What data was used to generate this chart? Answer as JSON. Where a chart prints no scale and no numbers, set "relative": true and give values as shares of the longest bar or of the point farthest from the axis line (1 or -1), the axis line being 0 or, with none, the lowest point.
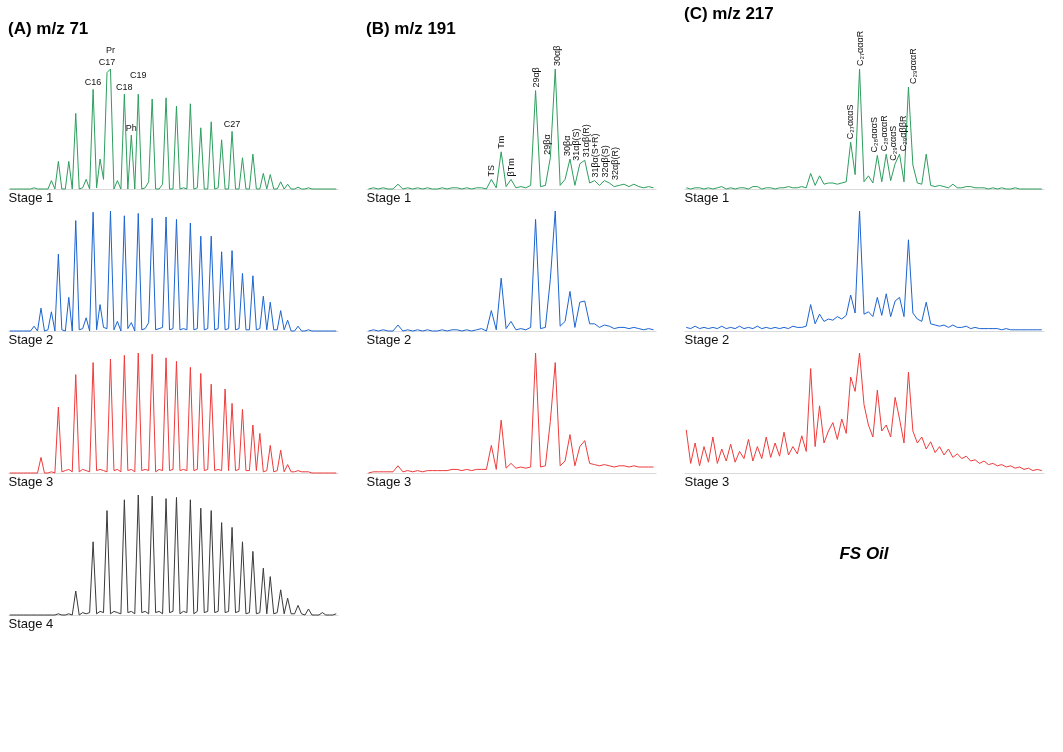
{
  "chart_data": [
    {
      "type": "line",
      "relative": true,
      "title": "(A) m/z 71",
      "xlabel": "Stage 1",
      "tick_labels": false,
      "categories": [
        null,
        null,
        null,
        null,
        null,
        null,
        null,
        null,
        null,
        null,
        null,
        null,
        null,
        null,
        null,
        null,
        null,
        null,
        null,
        null,
        null,
        null,
        null,
        null,
        null,
        null,
        null,
        null,
        null,
        null,
        null,
        null,
        null,
        null,
        null,
        null,
        null,
        null,
        null,
        null,
        null,
        null,
        null,
        null,
        null,
        null,
        null,
        null,
        null,
        null,
        null,
        null,
        null,
        null,
        null,
        null,
        null,
        null,
        null,
        null,
        null,
        null,
        null,
        null,
        null,
        null,
        null,
        null,
        null,
        null,
        null,
        null,
        null,
        null,
        null,
        null,
        null,
        null,
        null,
        null,
        null,
        null,
        null,
        null,
        null,
        null,
        null,
        null,
        null,
        null,
        null,
        null,
        null,
        null,
        null
      ],
      "series": [
        {
          "color": "#2e9e5e",
          "values": [
            0,
            0,
            0,
            0,
            0,
            0,
            0,
            0.01,
            0,
            0,
            0,
            0,
            0.07,
            0,
            0.23,
            0,
            0,
            0.23,
            0,
            0.63,
            0,
            0.01,
            0.08,
            0,
            0.83,
            0.01,
            0.25,
            0.08,
            0.97,
            1.0,
            0,
            0.07,
            0,
            0.79,
            0,
            0.45,
            0,
            0.79,
            0,
            0.01,
            0.06,
            0.75,
            0,
            0,
            0.04,
            0.76,
            0,
            0,
            0.69,
            0,
            0.01,
            0,
            0.71,
            0,
            0.01,
            0.51,
            0,
            0,
            0.56,
            0,
            0.01,
            0.41,
            0,
            0,
            0.48,
            0,
            0,
            0.26,
            0,
            0,
            0.29,
            0,
            0,
            0.13,
            0,
            0.12,
            0,
            0,
            0.06,
            0,
            0.04,
            0,
            0,
            0.015,
            0,
            0,
            0.01,
            0,
            0,
            0,
            0,
            0,
            0,
            0,
            0
          ]
        }
      ],
      "annotations": [
        {
          "text": "C16",
          "y": 0.83
        },
        {
          "text": "C17",
          "y": 0.97
        },
        {
          "text": "Pr",
          "y": 1.0
        },
        {
          "text": "C18",
          "y": 0.79
        },
        {
          "text": "Ph",
          "y": 0.45
        },
        {
          "text": "C19",
          "y": 0.79
        },
        {
          "text": "C27",
          "y": 0.48
        }
      ]
    },
    {
      "type": "line",
      "relative": true,
      "xlabel": "Stage 2",
      "tick_labels": false,
      "categories": [
        null,
        null,
        null,
        null,
        null,
        null,
        null,
        null,
        null,
        null,
        null,
        null,
        null,
        null,
        null,
        null,
        null,
        null,
        null,
        null,
        null,
        null,
        null,
        null,
        null,
        null,
        null,
        null,
        null,
        null,
        null,
        null,
        null,
        null,
        null,
        null,
        null,
        null,
        null,
        null,
        null,
        null,
        null,
        null,
        null,
        null,
        null,
        null,
        null,
        null,
        null,
        null,
        null,
        null,
        null,
        null,
        null,
        null,
        null,
        null,
        null,
        null,
        null,
        null,
        null,
        null,
        null,
        null,
        null,
        null,
        null,
        null,
        null,
        null,
        null,
        null,
        null,
        null,
        null,
        null,
        null,
        null,
        null,
        null,
        null,
        null,
        null,
        null,
        null,
        null,
        null,
        null,
        null,
        null,
        null
      ],
      "series": [
        {
          "color": "#1c64d0",
          "values": [
            0,
            0,
            0,
            0,
            0,
            0,
            0,
            0.04,
            0,
            0.19,
            0,
            0.01,
            0.16,
            0,
            0.64,
            0.01,
            0,
            0.28,
            0,
            0.92,
            0.01,
            0.02,
            0.11,
            0,
            0.99,
            0.01,
            0.22,
            0.03,
            0.02,
            1.0,
            0.01,
            0.08,
            0,
            0.96,
            0.02,
            0.07,
            0,
            0.98,
            0.01,
            0.02,
            0.07,
            0.94,
            0.01,
            0.02,
            0.03,
            0.95,
            0.01,
            0.02,
            0.93,
            0.01,
            0.02,
            0.01,
            0.9,
            0.01,
            0.02,
            0.79,
            0.01,
            0.02,
            0.79,
            0.01,
            0.02,
            0.66,
            0.01,
            0.02,
            0.67,
            0.01,
            0.02,
            0.48,
            0.01,
            0.01,
            0.46,
            0.01,
            0.02,
            0.29,
            0.01,
            0.24,
            0.01,
            0.01,
            0.17,
            0.01,
            0.09,
            0,
            0,
            0.04,
            0,
            0,
            0.01,
            0,
            0,
            0,
            0,
            0,
            0,
            0,
            0
          ]
        }
      ]
    },
    {
      "type": "line",
      "relative": true,
      "xlabel": "Stage 3",
      "tick_labels": false,
      "categories": [
        null,
        null,
        null,
        null,
        null,
        null,
        null,
        null,
        null,
        null,
        null,
        null,
        null,
        null,
        null,
        null,
        null,
        null,
        null,
        null,
        null,
        null,
        null,
        null,
        null,
        null,
        null,
        null,
        null,
        null,
        null,
        null,
        null,
        null,
        null,
        null,
        null,
        null,
        null,
        null,
        null,
        null,
        null,
        null,
        null,
        null,
        null,
        null,
        null,
        null,
        null,
        null,
        null,
        null,
        null,
        null,
        null,
        null,
        null,
        null,
        null,
        null,
        null,
        null,
        null,
        null,
        null,
        null,
        null,
        null,
        null,
        null,
        null,
        null,
        null,
        null,
        null,
        null,
        null,
        null,
        null,
        null,
        null,
        null,
        null,
        null,
        null,
        null,
        null,
        null,
        null,
        null,
        null,
        null,
        null
      ],
      "series": [
        {
          "color": "#ef3b3b",
          "values": [
            0,
            0,
            0,
            0,
            0,
            0,
            0,
            0,
            0,
            0.13,
            0,
            0,
            0.01,
            0,
            0.55,
            0.01,
            0.02,
            0.03,
            0.01,
            0.82,
            0.01,
            0.03,
            0.02,
            0.01,
            0.92,
            0.02,
            0.03,
            0.02,
            0.01,
            0.95,
            0.02,
            0.03,
            0.01,
            0.98,
            0.02,
            0.03,
            0.01,
            1.0,
            0.02,
            0.03,
            0.02,
            0.99,
            0.01,
            0.03,
            0.02,
            0.96,
            0.02,
            0.03,
            0.93,
            0.02,
            0.03,
            0.02,
            0.88,
            0.02,
            0.03,
            0.83,
            0.02,
            0.03,
            0.74,
            0.02,
            0.03,
            0.02,
            0.7,
            0.02,
            0.58,
            0.02,
            0.03,
            0.53,
            0.02,
            0.02,
            0.4,
            0.02,
            0.33,
            0.01,
            0.02,
            0.23,
            0.01,
            0.02,
            0.19,
            0.01,
            0.07,
            0.01,
            0.01,
            0.02,
            0.01,
            0.01,
            0.01,
            0,
            0,
            0,
            0,
            0,
            0,
            0,
            0
          ]
        }
      ]
    },
    {
      "type": "line",
      "relative": true,
      "xlabel": "Stage 4",
      "tick_labels": false,
      "categories": [
        null,
        null,
        null,
        null,
        null,
        null,
        null,
        null,
        null,
        null,
        null,
        null,
        null,
        null,
        null,
        null,
        null,
        null,
        null,
        null,
        null,
        null,
        null,
        null,
        null,
        null,
        null,
        null,
        null,
        null,
        null,
        null,
        null,
        null,
        null,
        null,
        null,
        null,
        null,
        null,
        null,
        null,
        null,
        null,
        null,
        null,
        null,
        null,
        null,
        null,
        null,
        null,
        null,
        null,
        null,
        null,
        null,
        null,
        null,
        null,
        null,
        null,
        null,
        null,
        null,
        null,
        null,
        null,
        null,
        null,
        null,
        null,
        null,
        null,
        null,
        null,
        null,
        null,
        null,
        null,
        null,
        null,
        null,
        null,
        null,
        null,
        null,
        null,
        null,
        null,
        null,
        null,
        null,
        null,
        null
      ],
      "series": [
        {
          "color": "#3a3a3a",
          "values": [
            0,
            0,
            0,
            0,
            0,
            0,
            0,
            0,
            0,
            0,
            0,
            0,
            0,
            0,
            0.01,
            0,
            0,
            0.01,
            0,
            0.2,
            0,
            0.02,
            0.01,
            0.02,
            0.61,
            0.01,
            0.03,
            0.02,
            0.87,
            0.01,
            0.03,
            0.02,
            0.01,
            0.96,
            0.02,
            0.03,
            0.01,
            1.0,
            0.02,
            0.03,
            0.01,
            0.99,
            0.02,
            0.03,
            0.01,
            0.97,
            0.02,
            0.03,
            0.98,
            0.01,
            0.03,
            0.02,
            0.96,
            0.01,
            0.03,
            0.89,
            0.02,
            0.03,
            0.87,
            0.02,
            0.03,
            0.77,
            0.02,
            0.03,
            0.73,
            0.02,
            0.03,
            0.61,
            0.01,
            0.02,
            0.53,
            0.01,
            0.02,
            0.39,
            0.01,
            0.32,
            0.01,
            0.02,
            0.21,
            0.01,
            0.14,
            0.01,
            0.01,
            0.08,
            0.01,
            0,
            0.05,
            0,
            0,
            0,
            0.02,
            0,
            0,
            0,
            0.01
          ]
        }
      ]
    },
    {
      "type": "line",
      "relative": true,
      "title": "(B) m/z 191",
      "xlabel": "Stage 1",
      "tick_labels": false,
      "categories": [
        null,
        null,
        null,
        null,
        null,
        null,
        null,
        null,
        null,
        null,
        null,
        null,
        null,
        null,
        null,
        null,
        null,
        null,
        null,
        null,
        null,
        null,
        null,
        null,
        null,
        null,
        null,
        null,
        null,
        null,
        null,
        null,
        null,
        null,
        null,
        null,
        null,
        null,
        null,
        null,
        null,
        null,
        null,
        null,
        null,
        null,
        null,
        null,
        null,
        null,
        null,
        null,
        null,
        null,
        null,
        null,
        null,
        null,
        null
      ],
      "series": [
        {
          "color": "#2e9e5e",
          "values": [
            0,
            0.01,
            0,
            0.01,
            0,
            0,
            0.04,
            0,
            0.01,
            0,
            0.01,
            0,
            0.01,
            0,
            0,
            0.01,
            0,
            0.01,
            0.01,
            0,
            0.01,
            0,
            0.01,
            0.01,
            0,
            0.08,
            0.01,
            0.31,
            0.02,
            0.08,
            0.01,
            0.02,
            0.01,
            0.03,
            0.82,
            0.02,
            0.03,
            0.26,
            1.0,
            0.03,
            0.08,
            0.25,
            0.03,
            0.21,
            0.24,
            0.05,
            0.07,
            0.03,
            0.07,
            0.05,
            0.02,
            0.03,
            0.04,
            0.02,
            0.04,
            0.02,
            0.01,
            0.02,
            0.01
          ]
        }
      ],
      "annotations": [
        {
          "text": "TS",
          "y": 0.08
        },
        {
          "text": "Tm",
          "y": 0.31
        },
        {
          "text": "βTm",
          "y": 0.08
        },
        {
          "text": "29αβ",
          "y": 0.82
        },
        {
          "text": "29βα",
          "y": 0.26
        },
        {
          "text": "30αβ",
          "y": 1.0
        },
        {
          "text": "30βα",
          "y": 0.25
        },
        {
          "text": "31αβ(S)",
          "y": 0.21
        },
        {
          "text": "31αβ(R)",
          "y": 0.24
        },
        {
          "text": "31βα(S+R)",
          "y": 0.07
        },
        {
          "text": "32αβ(S)",
          "y": 0.07
        },
        {
          "text": "32αβ(R)",
          "y": 0.05
        }
      ]
    },
    {
      "type": "line",
      "relative": true,
      "xlabel": "Stage 2",
      "tick_labels": false,
      "categories": [
        null,
        null,
        null,
        null,
        null,
        null,
        null,
        null,
        null,
        null,
        null,
        null,
        null,
        null,
        null,
        null,
        null,
        null,
        null,
        null,
        null,
        null,
        null,
        null,
        null,
        null,
        null,
        null,
        null,
        null,
        null,
        null,
        null,
        null,
        null,
        null,
        null,
        null,
        null,
        null,
        null,
        null,
        null,
        null,
        null,
        null,
        null,
        null,
        null,
        null,
        null,
        null,
        null,
        null,
        null,
        null,
        null,
        null,
        null
      ],
      "series": [
        {
          "color": "#1c64d0",
          "values": [
            0,
            0.01,
            0,
            0.01,
            0,
            0,
            0.05,
            0,
            0.01,
            0,
            0.01,
            0,
            0.01,
            0,
            0,
            0.01,
            0,
            0.01,
            0.01,
            0,
            0.01,
            0,
            0.01,
            0.02,
            0,
            0.17,
            0.01,
            0.44,
            0.02,
            0.08,
            0.01,
            0.02,
            0.01,
            0.03,
            0.93,
            0.02,
            0.03,
            0.43,
            1.0,
            0.04,
            0.08,
            0.33,
            0.03,
            0.24,
            0.25,
            0.06,
            0.06,
            0.03,
            0.05,
            0.04,
            0.02,
            0.03,
            0.03,
            0.02,
            0.03,
            0.02,
            0.01,
            0.02,
            0.01
          ]
        }
      ]
    },
    {
      "type": "line",
      "relative": true,
      "xlabel": "Stage 3",
      "tick_labels": false,
      "categories": [
        null,
        null,
        null,
        null,
        null,
        null,
        null,
        null,
        null,
        null,
        null,
        null,
        null,
        null,
        null,
        null,
        null,
        null,
        null,
        null,
        null,
        null,
        null,
        null,
        null,
        null,
        null,
        null,
        null,
        null,
        null,
        null,
        null,
        null,
        null,
        null,
        null,
        null,
        null,
        null,
        null,
        null,
        null,
        null,
        null,
        null,
        null,
        null,
        null,
        null,
        null,
        null,
        null,
        null,
        null,
        null,
        null,
        null,
        null
      ],
      "series": [
        {
          "color": "#ef3b3b",
          "values": [
            0,
            0.01,
            0.01,
            0.01,
            0.01,
            0.01,
            0.06,
            0.01,
            0.02,
            0.01,
            0.02,
            0.01,
            0.02,
            0.02,
            0.02,
            0.02,
            0.02,
            0.03,
            0.03,
            0.02,
            0.03,
            0.02,
            0.03,
            0.03,
            0.03,
            0.23,
            0.03,
            0.44,
            0.04,
            0.08,
            0.04,
            0.05,
            0.04,
            0.05,
            1.0,
            0.05,
            0.06,
            0.43,
            0.92,
            0.06,
            0.1,
            0.32,
            0.06,
            0.22,
            0.27,
            0.08,
            0.07,
            0.06,
            0.07,
            0.06,
            0.05,
            0.06,
            0.06,
            0.05,
            0.06,
            0.05,
            0.05,
            0.05,
            0.05
          ]
        }
      ]
    },
    {
      "type": "line",
      "relative": true,
      "title": "(C) m/z 217",
      "xlabel": "Stage 1",
      "tick_labels": false,
      "categories": [
        null,
        null,
        null,
        null,
        null,
        null,
        null,
        null,
        null,
        null,
        null,
        null,
        null,
        null,
        null,
        null,
        null,
        null,
        null,
        null,
        null,
        null,
        null,
        null,
        null,
        null,
        null,
        null,
        null,
        null,
        null,
        null,
        null,
        null,
        null,
        null,
        null,
        null,
        null,
        null,
        null,
        null,
        null,
        null,
        null,
        null,
        null,
        null,
        null,
        null,
        null,
        null,
        null,
        null,
        null,
        null,
        null,
        null,
        null,
        null,
        null,
        null,
        null,
        null,
        null,
        null,
        null,
        null,
        null,
        null,
        null,
        null,
        null,
        null,
        null,
        null,
        null,
        null,
        null,
        null,
        null
      ],
      "series": [
        {
          "color": "#2e9e5e",
          "values": [
            0.01,
            0,
            0.01,
            0.01,
            0,
            0.01,
            0,
            0.01,
            0.02,
            0,
            0.01,
            0,
            0.01,
            0.01,
            0,
            0.02,
            0.02,
            0,
            0.01,
            0.01,
            0,
            0.01,
            0.01,
            0.02,
            0.01,
            0.01,
            0.02,
            0.01,
            0.13,
            0.03,
            0.11,
            0.04,
            0.05,
            0.05,
            0.04,
            0.05,
            0.06,
            0.39,
            0.12,
            1.0,
            0.06,
            0.11,
            0.05,
            0.28,
            0.06,
            0.29,
            0.07,
            0.21,
            0.29,
            0.06,
            0.85,
            0.2,
            0.05,
            0.04,
            0.29,
            0.03,
            0.02,
            0.03,
            0.02,
            0.01,
            0.04,
            0.01,
            0.01,
            0.02,
            0.02,
            0.01,
            0.01,
            0.01,
            0,
            0.01,
            0,
            0.01,
            0,
            0,
            0.01,
            0,
            0,
            0,
            0,
            0,
            0
          ]
        }
      ],
      "annotations": [
        {
          "text": "C₂₇αααS",
          "y": 0.39
        },
        {
          "text": "C₂₇αααR",
          "y": 1.0
        },
        {
          "text": "C₂₈αααS",
          "y": 0.28
        },
        {
          "text": "C₂₈αααR",
          "y": 0.29
        },
        {
          "text": "C₂₉αααS",
          "y": 0.21
        },
        {
          "text": "C₂₉αββR",
          "y": 0.29
        },
        {
          "text": "C₂₉αααR",
          "y": 0.85
        }
      ]
    },
    {
      "type": "line",
      "relative": true,
      "xlabel": "Stage 2",
      "tick_labels": false,
      "categories": [
        null,
        null,
        null,
        null,
        null,
        null,
        null,
        null,
        null,
        null,
        null,
        null,
        null,
        null,
        null,
        null,
        null,
        null,
        null,
        null,
        null,
        null,
        null,
        null,
        null,
        null,
        null,
        null,
        null,
        null,
        null,
        null,
        null,
        null,
        null,
        null,
        null,
        null,
        null,
        null,
        null,
        null,
        null,
        null,
        null,
        null,
        null,
        null,
        null,
        null,
        null,
        null,
        null,
        null,
        null,
        null,
        null,
        null,
        null,
        null,
        null,
        null,
        null,
        null,
        null,
        null,
        null,
        null,
        null,
        null,
        null,
        null,
        null,
        null,
        null,
        null,
        null,
        null,
        null,
        null,
        null
      ],
      "series": [
        {
          "color": "#1c64d0",
          "values": [
            0.03,
            0.02,
            0.04,
            0.02,
            0.03,
            0.02,
            0.03,
            0.02,
            0.04,
            0.02,
            0.03,
            0.02,
            0.04,
            0.02,
            0.03,
            0.02,
            0.04,
            0.02,
            0.03,
            0.02,
            0.03,
            0.02,
            0.03,
            0.02,
            0.04,
            0.03,
            0.03,
            0.04,
            0.22,
            0.06,
            0.14,
            0.08,
            0.1,
            0.09,
            0.12,
            0.1,
            0.13,
            0.3,
            0.15,
            1.0,
            0.14,
            0.16,
            0.12,
            0.28,
            0.13,
            0.31,
            0.12,
            0.25,
            0.28,
            0.12,
            0.76,
            0.15,
            0.1,
            0.08,
            0.24,
            0.06,
            0.05,
            0.04,
            0.05,
            0.03,
            0.05,
            0.03,
            0.03,
            0.04,
            0.02,
            0.03,
            0.02,
            0.02,
            0.02,
            0.02,
            0.02,
            0.01,
            0.02,
            0.01,
            0.01,
            0.01,
            0.01,
            0.01,
            0.01,
            0.01,
            0.01
          ]
        }
      ]
    },
    {
      "type": "line",
      "relative": true,
      "xlabel": "Stage 3",
      "tick_labels": false,
      "categories": [
        null,
        null,
        null,
        null,
        null,
        null,
        null,
        null,
        null,
        null,
        null,
        null,
        null,
        null,
        null,
        null,
        null,
        null,
        null,
        null,
        null,
        null,
        null,
        null,
        null,
        null,
        null,
        null,
        null,
        null,
        null,
        null,
        null,
        null,
        null,
        null,
        null,
        null,
        null,
        null,
        null,
        null,
        null,
        null,
        null,
        null,
        null,
        null,
        null,
        null,
        null,
        null,
        null,
        null,
        null,
        null,
        null,
        null,
        null,
        null,
        null,
        null,
        null,
        null,
        null,
        null,
        null,
        null,
        null,
        null,
        null,
        null,
        null,
        null,
        null,
        null,
        null,
        null,
        null,
        null,
        null
      ],
      "series": [
        {
          "color": "#ef3b3b",
          "values": [
            0.36,
            0.08,
            0.25,
            0.06,
            0.22,
            0.09,
            0.3,
            0.08,
            0.2,
            0.1,
            0.24,
            0.09,
            0.18,
            0.12,
            0.28,
            0.1,
            0.22,
            0.12,
            0.3,
            0.13,
            0.25,
            0.14,
            0.34,
            0.15,
            0.22,
            0.16,
            0.31,
            0.18,
            0.87,
            0.22,
            0.56,
            0.25,
            0.35,
            0.42,
            0.28,
            0.45,
            0.33,
            0.8,
            0.68,
            1.0,
            0.57,
            0.4,
            0.3,
            0.69,
            0.35,
            0.4,
            0.3,
            0.63,
            0.45,
            0.25,
            0.84,
            0.35,
            0.25,
            0.3,
            0.2,
            0.26,
            0.17,
            0.22,
            0.15,
            0.2,
            0.13,
            0.16,
            0.12,
            0.14,
            0.1,
            0.11,
            0.08,
            0.1,
            0.07,
            0.08,
            0.06,
            0.07,
            0.05,
            0.06,
            0.04,
            0.05,
            0.03,
            0.04,
            0.02,
            0.03,
            0.02
          ]
        }
      ]
    },
    {
      "type": "other",
      "annotations": [
        "FS Oil"
      ]
    }
  ]
}
